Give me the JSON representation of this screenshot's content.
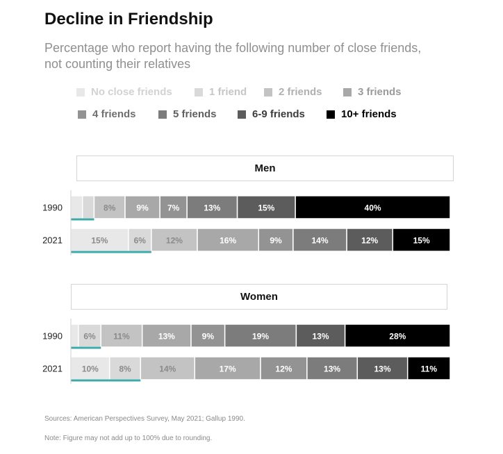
{
  "title": "Decline in Friendship",
  "subtitle": "Percentage who report having the following number of close friends, not counting their relatives",
  "colors": {
    "No close friends": "#e8e8e8",
    "1 friend": "#d9d9d9",
    "2 friends": "#c3c3c3",
    "3 friends": "#a8a8a8",
    "4 friends": "#939393",
    "5 friends": "#7c7c7c",
    "6-9 friends": "#5c5c5c",
    "10+ friends": "#000000",
    "highlight": "#3ea9a9"
  },
  "legend": [
    "No close friends",
    "1 friend",
    "2 friends",
    "3 friends",
    "4 friends",
    "5 friends",
    "6-9 friends",
    "10+ friends"
  ],
  "chart_data": {
    "type": "bar",
    "stacked": true,
    "orientation": "horizontal",
    "unit": "%",
    "categories": [
      "No close friends",
      "1 friend",
      "2 friends",
      "3 friends",
      "4 friends",
      "5 friends",
      "6-9 friends",
      "10+ friends"
    ],
    "panels": [
      {
        "title": "Men",
        "rows": [
          {
            "year": "1990",
            "values": [
              3,
              3,
              8,
              9,
              7,
              13,
              15,
              40
            ],
            "labels": [
              "",
              "",
              "8%",
              "9%",
              "7%",
              "13%",
              "15%",
              "40%"
            ]
          },
          {
            "year": "2021",
            "values": [
              15,
              6,
              12,
              16,
              9,
              14,
              12,
              15
            ],
            "labels": [
              "15%",
              "6%",
              "12%",
              "16%",
              "9%",
              "14%",
              "12%",
              "15%"
            ]
          }
        ]
      },
      {
        "title": "Women",
        "rows": [
          {
            "year": "1990",
            "values": [
              2,
              6,
              11,
              13,
              9,
              19,
              13,
              28
            ],
            "labels": [
              "",
              "6%",
              "11%",
              "13%",
              "9%",
              "19%",
              "13%",
              "28%"
            ]
          },
          {
            "year": "2021",
            "values": [
              10,
              8,
              14,
              17,
              12,
              13,
              13,
              11
            ],
            "labels": [
              "10%",
              "8%",
              "14%",
              "17%",
              "12%",
              "13%",
              "13%",
              "11%"
            ]
          }
        ]
      }
    ],
    "highlight_underline": "No close friends + 1 friend"
  },
  "sources": "Sources: American Perspectives Survey, May 2021; Gallup 1990.",
  "note": "Note: Figure may not add up to 100% due to rounding."
}
